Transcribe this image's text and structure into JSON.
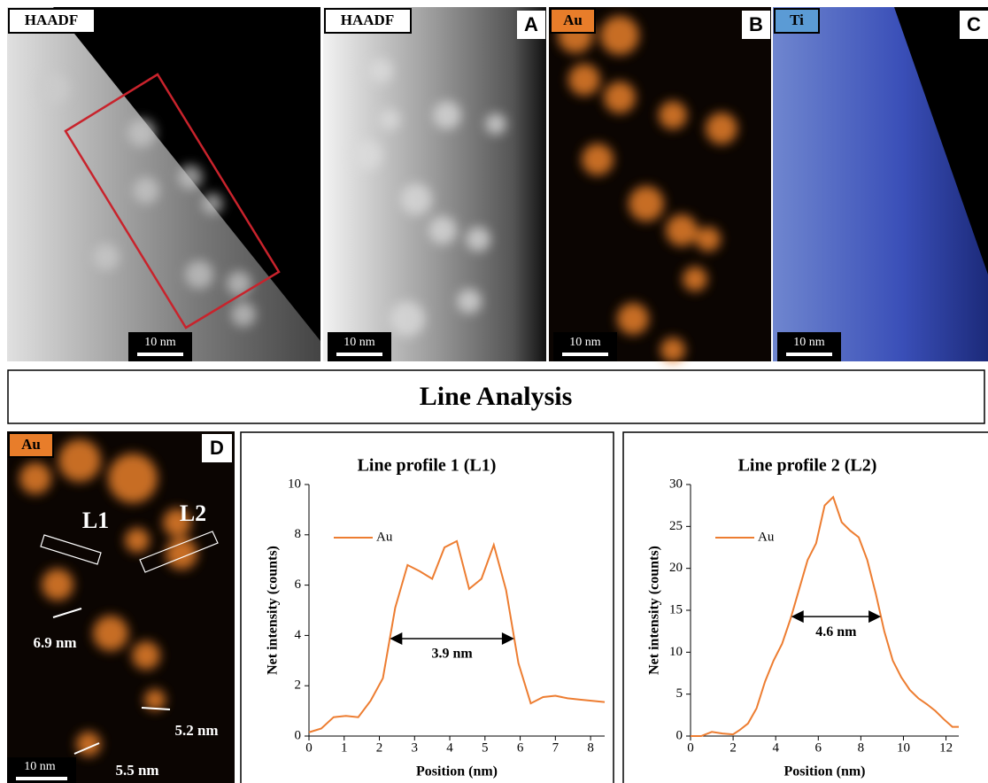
{
  "panels": [
    {
      "tag": "HAADF",
      "scale_bar": "10 nm"
    },
    {
      "tag": "HAADF",
      "letter": "A",
      "scale_bar": "10 nm"
    },
    {
      "tag": "Au",
      "letter": "B",
      "scale_bar": "10 nm"
    },
    {
      "tag": "Ti",
      "letter": "C",
      "scale_bar": "10 nm"
    }
  ],
  "section_title": "Line Analysis",
  "panel_d": {
    "tag": "Au",
    "letter": "D",
    "lines": [
      "L1",
      "L2"
    ],
    "sizes": [
      "6.9 nm",
      "5.2 nm",
      "5.5 nm"
    ],
    "scale_bar": "10 nm"
  },
  "chart_data": [
    {
      "type": "line",
      "title": "Line profile 1 (L1)",
      "x_label": "Position (nm)",
      "y_label": "Net intensity (counts)",
      "x": [
        0,
        0.35,
        0.7,
        1.05,
        1.4,
        1.75,
        2.1,
        2.45,
        2.8,
        3.15,
        3.5,
        3.85,
        4.2,
        4.55,
        4.9,
        5.25,
        5.6,
        5.95,
        6.3,
        6.65,
        7.0,
        7.35,
        7.7,
        8.05,
        8.4
      ],
      "series": [
        {
          "name": "Au",
          "color": "#ed7d31",
          "values": [
            0.15,
            0.3,
            0.75,
            0.8,
            0.75,
            1.4,
            2.3,
            5.1,
            6.8,
            6.55,
            6.25,
            7.5,
            7.75,
            5.85,
            6.25,
            7.6,
            5.8,
            2.9,
            1.3,
            1.55,
            1.6,
            1.5,
            1.45,
            1.4,
            1.35
          ]
        }
      ],
      "xlim": [
        0,
        8.4
      ],
      "xticks": [
        0,
        1,
        2,
        3,
        4,
        5,
        6,
        7,
        8
      ],
      "ylim": [
        0,
        10
      ],
      "yticks": [
        0,
        2,
        4,
        6,
        8,
        10
      ],
      "legend": "upper left",
      "annotation": "3.9 nm"
    },
    {
      "type": "line",
      "title": "Line profile 2 (L2)",
      "x_label": "Position (nm)",
      "y_label": "Net intensity (counts)",
      "x": [
        0,
        0.5,
        1,
        1.5,
        2,
        2.3,
        2.7,
        3.1,
        3.5,
        3.9,
        4.3,
        4.7,
        5.1,
        5.5,
        5.9,
        6.3,
        6.7,
        7.1,
        7.5,
        7.9,
        8.3,
        8.7,
        9.1,
        9.5,
        9.9,
        10.3,
        10.7,
        11.1,
        11.5,
        11.9,
        12.3,
        12.6
      ],
      "series": [
        {
          "name": "Au",
          "color": "#ed7d31",
          "values": [
            0,
            0,
            0.5,
            0.3,
            0.2,
            0.7,
            1.5,
            3.3,
            6.5,
            9,
            11,
            14,
            17.5,
            21,
            23,
            27.5,
            28.5,
            25.5,
            24.5,
            23.7,
            21,
            17,
            12.5,
            9,
            7,
            5.5,
            4.5,
            3.8,
            3,
            2,
            1.1,
            1.1
          ]
        }
      ],
      "xlim": [
        0,
        12.6
      ],
      "xticks": [
        0,
        2,
        4,
        6,
        8,
        10,
        12
      ],
      "ylim": [
        0,
        30
      ],
      "yticks": [
        0,
        5,
        10,
        15,
        20,
        25,
        30
      ],
      "legend": "upper left",
      "annotation": "4.6 nm"
    }
  ]
}
